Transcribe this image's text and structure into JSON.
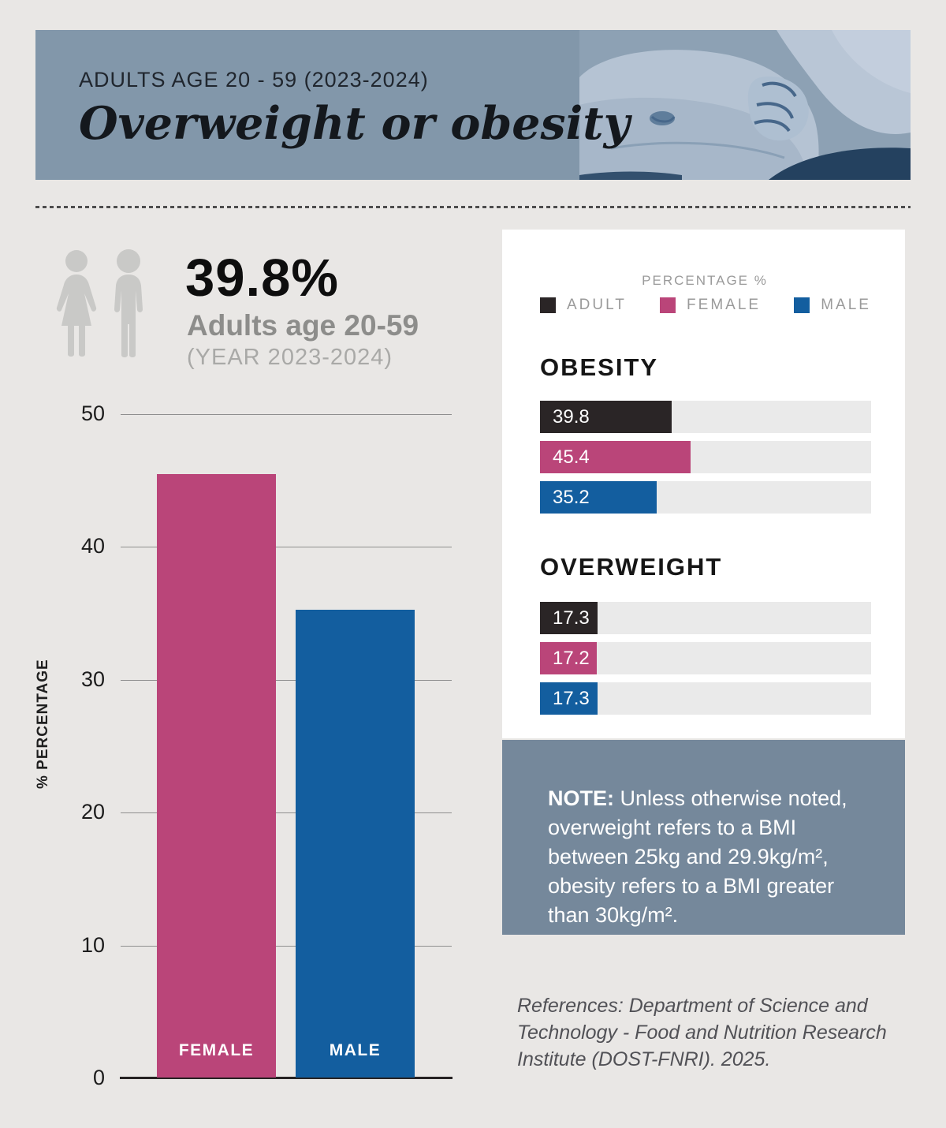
{
  "header": {
    "eyebrow": "ADULTS AGE 20 - 59 (2023-2024)",
    "title": "Overweight or obesity"
  },
  "stat": {
    "value": "39.8%",
    "label": "Adults age 20-59",
    "sublabel": "(YEAR 2023-2024)"
  },
  "legend": {
    "heading": "PERCENTAGE %",
    "items": [
      {
        "label": "ADULT",
        "color": "#2a2526"
      },
      {
        "label": "FEMALE",
        "color": "#ba4579"
      },
      {
        "label": "MALE",
        "color": "#135e9f"
      }
    ]
  },
  "chart_data": [
    {
      "type": "bar",
      "orientation": "vertical",
      "categories": [
        "FEMALE",
        "MALE"
      ],
      "values": [
        45.4,
        35.2
      ],
      "colors": [
        "#ba4579",
        "#135e9f"
      ],
      "ylabel": "% PERCENTAGE",
      "ylim": [
        0,
        50
      ],
      "yticks": [
        0,
        10,
        20,
        30,
        40,
        50
      ],
      "grid": true
    },
    {
      "type": "bar",
      "orientation": "horizontal",
      "title": "OBESITY",
      "categories": [
        "ADULT",
        "FEMALE",
        "MALE"
      ],
      "values": [
        39.8,
        45.4,
        35.2
      ],
      "colors": [
        "#2a2526",
        "#ba4579",
        "#135e9f"
      ],
      "xlim": [
        0,
        100
      ]
    },
    {
      "type": "bar",
      "orientation": "horizontal",
      "title": "OVERWEIGHT",
      "categories": [
        "ADULT",
        "FEMALE",
        "MALE"
      ],
      "values": [
        17.3,
        17.2,
        17.3
      ],
      "colors": [
        "#2a2526",
        "#ba4579",
        "#135e9f"
      ],
      "xlim": [
        0,
        100
      ]
    }
  ],
  "note": {
    "label": "NOTE:",
    "text": " Unless otherwise noted, overweight refers to a BMI between 25kg and 29.9kg/m², obesity refers to a BMI greater than 30kg/m²."
  },
  "references": "References: Department of Science and Technology - Food and Nutrition Research Institute (DOST-FNRI). 2025."
}
